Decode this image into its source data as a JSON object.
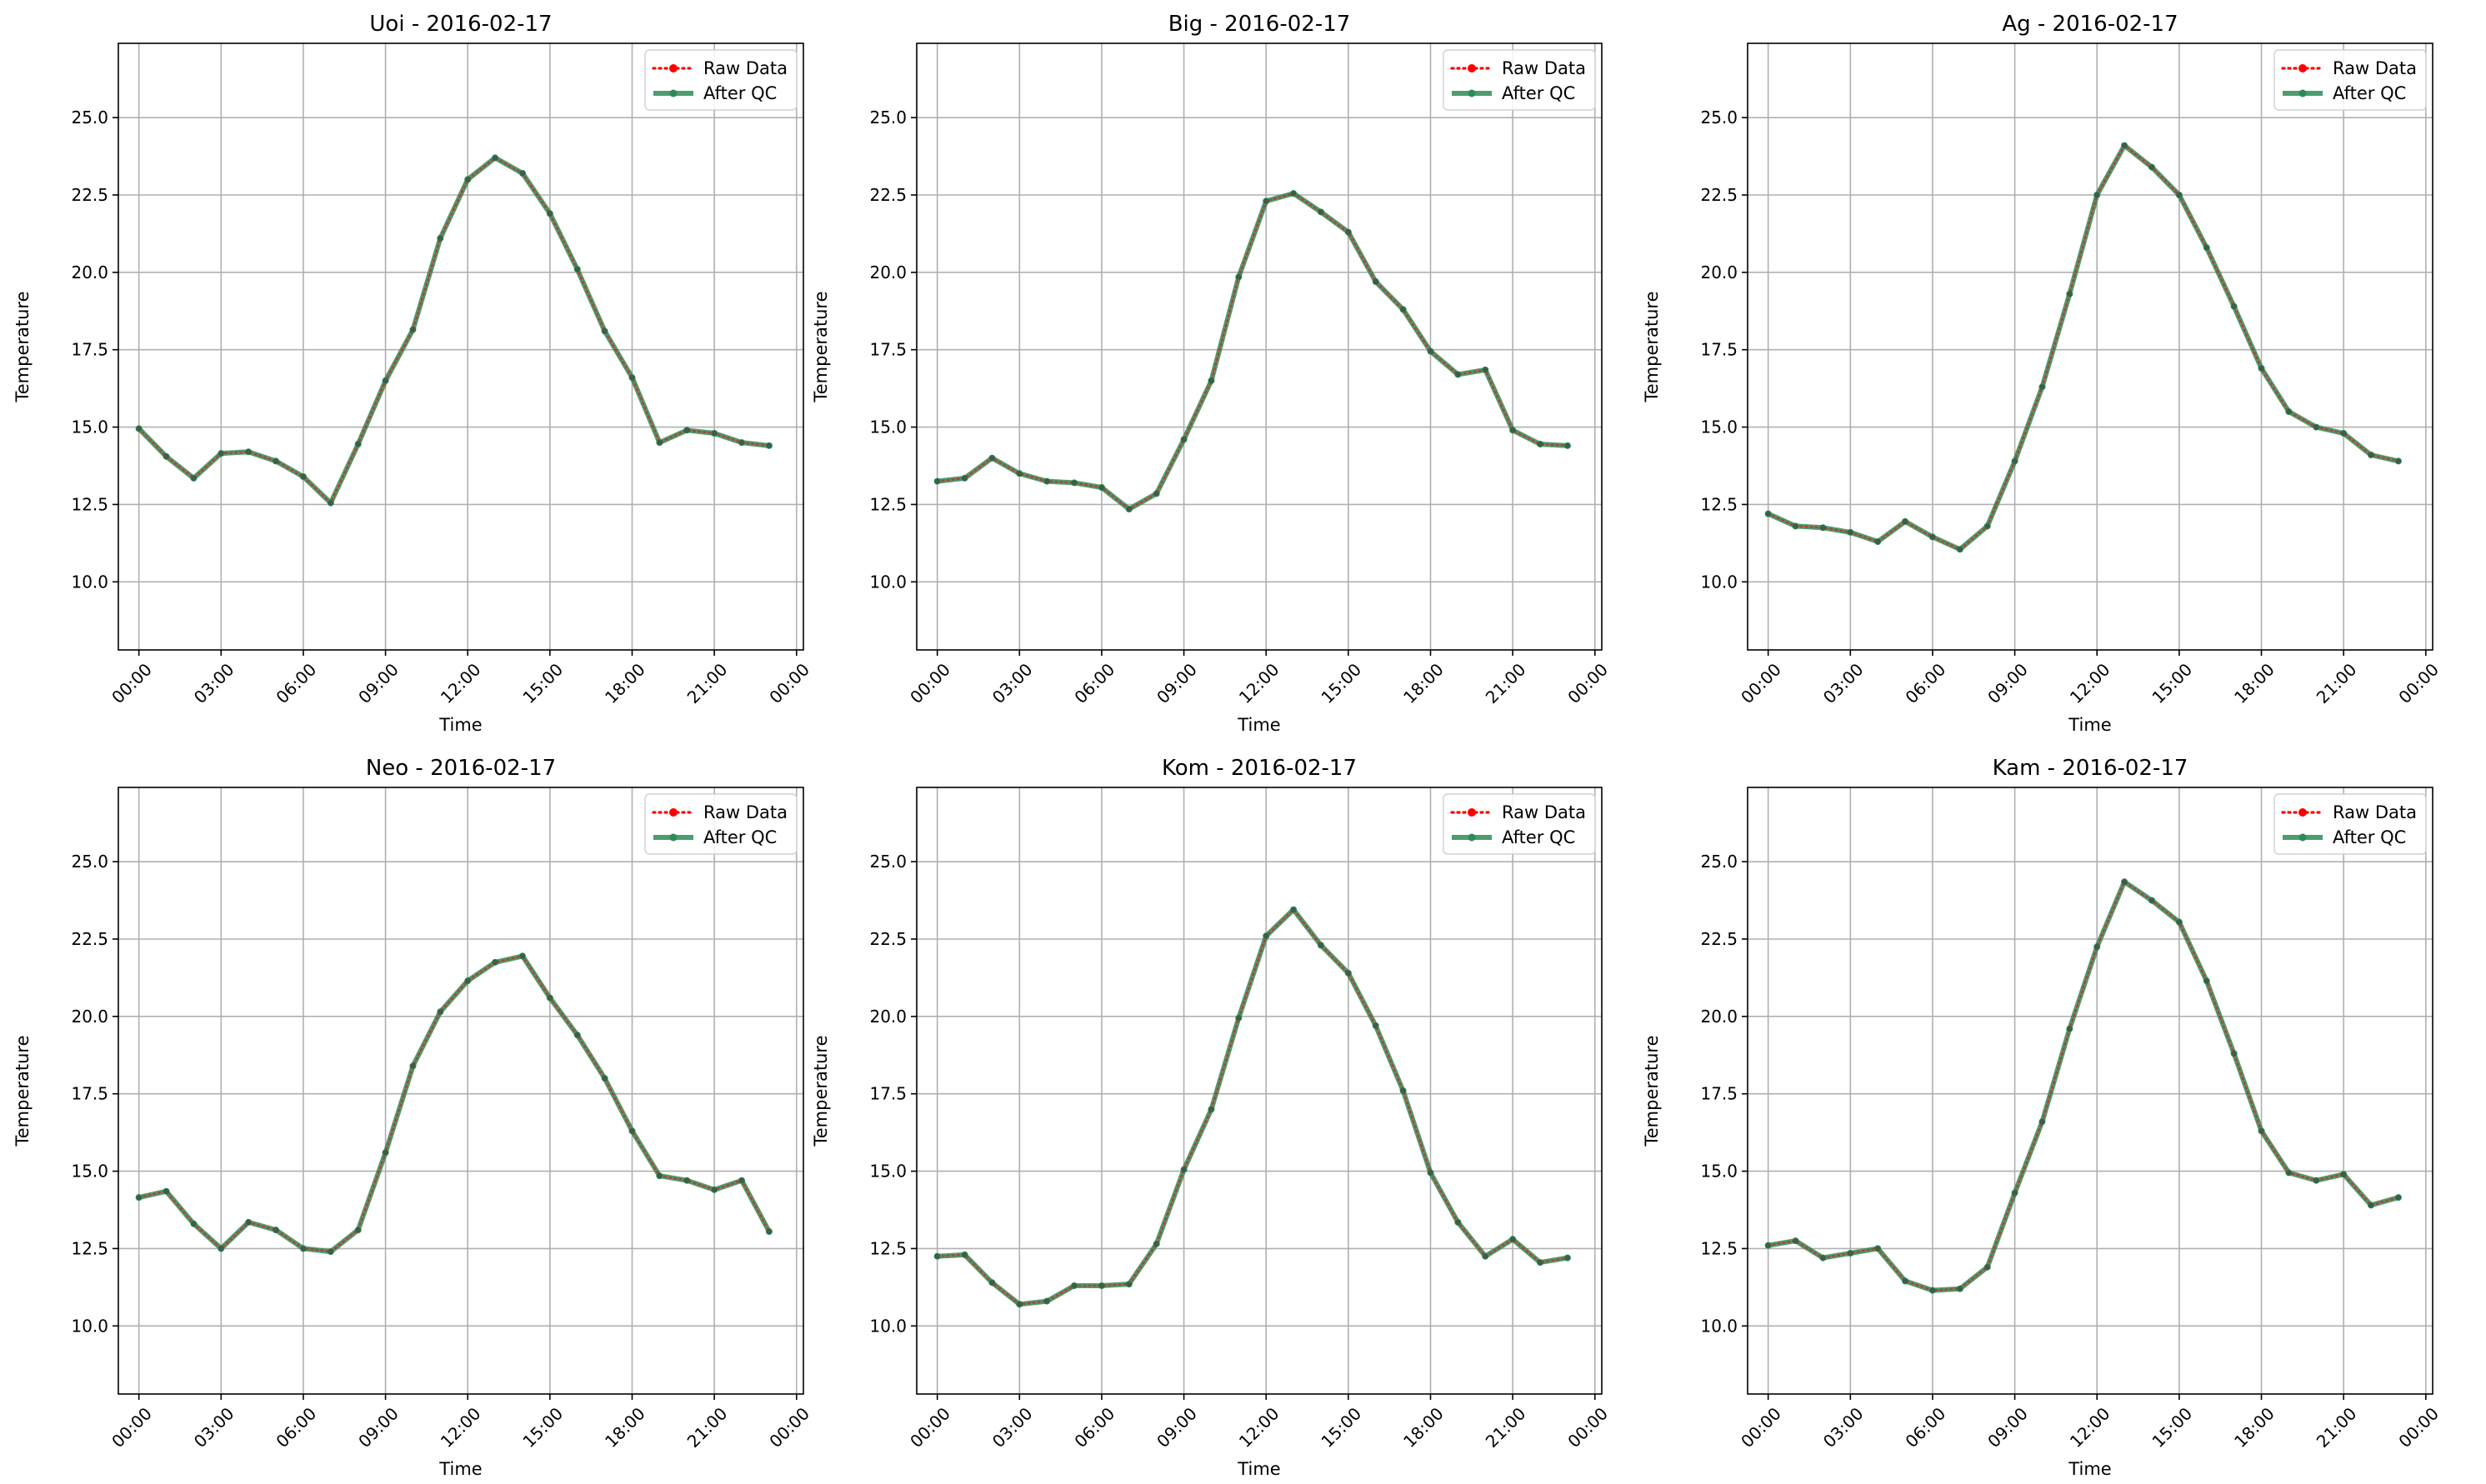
{
  "chart_data": [
    {
      "type": "line",
      "title": "Uoi - 2016-02-17",
      "xlabel": "Time",
      "ylabel": "Temperature",
      "x": [
        "00:00",
        "01:00",
        "02:00",
        "03:00",
        "04:00",
        "05:00",
        "06:00",
        "07:00",
        "08:00",
        "09:00",
        "10:00",
        "11:00",
        "12:00",
        "13:00",
        "14:00",
        "15:00",
        "16:00",
        "17:00",
        "18:00",
        "19:00",
        "20:00",
        "21:00",
        "22:00",
        "23:00"
      ],
      "xticks": [
        "00:00",
        "03:00",
        "06:00",
        "09:00",
        "12:00",
        "15:00",
        "18:00",
        "21:00",
        "00:00"
      ],
      "xlim": [
        "-0:45",
        "24:15"
      ],
      "ylim": [
        7.8,
        27.4
      ],
      "yticks": [
        "10.0",
        "12.5",
        "15.0",
        "17.5",
        "20.0",
        "22.5",
        "25.0"
      ],
      "grid": true,
      "legend": "top-right",
      "series": [
        {
          "name": "Raw Data",
          "color": "#ff0000",
          "style": "dotted",
          "values": [
            14.95,
            14.05,
            13.35,
            14.15,
            14.2,
            13.9,
            13.4,
            12.55,
            14.45,
            16.5,
            18.15,
            21.1,
            23.0,
            23.7,
            23.2,
            21.9,
            20.1,
            18.1,
            16.6,
            14.5,
            14.9,
            14.8,
            14.5,
            14.4
          ]
        },
        {
          "name": "After QC",
          "color": "#2e8b57",
          "style": "solid",
          "values": [
            14.95,
            14.05,
            13.35,
            14.15,
            14.2,
            13.9,
            13.4,
            12.55,
            14.45,
            16.5,
            18.15,
            21.1,
            23.0,
            23.7,
            23.2,
            21.9,
            20.1,
            18.1,
            16.6,
            14.5,
            14.9,
            14.8,
            14.5,
            14.4
          ]
        }
      ]
    },
    {
      "type": "line",
      "title": "Big - 2016-02-17",
      "xlabel": "Time",
      "ylabel": "Temperature",
      "x": [
        "00:00",
        "01:00",
        "02:00",
        "03:00",
        "04:00",
        "05:00",
        "06:00",
        "07:00",
        "08:00",
        "09:00",
        "10:00",
        "11:00",
        "12:00",
        "13:00",
        "14:00",
        "15:00",
        "16:00",
        "17:00",
        "18:00",
        "19:00",
        "20:00",
        "21:00",
        "22:00",
        "23:00"
      ],
      "xticks": [
        "00:00",
        "03:00",
        "06:00",
        "09:00",
        "12:00",
        "15:00",
        "18:00",
        "21:00",
        "00:00"
      ],
      "xlim": [
        "-0:45",
        "24:15"
      ],
      "ylim": [
        7.8,
        27.4
      ],
      "yticks": [
        "10.0",
        "12.5",
        "15.0",
        "17.5",
        "20.0",
        "22.5",
        "25.0"
      ],
      "grid": true,
      "legend": "top-right",
      "series": [
        {
          "name": "Raw Data",
          "color": "#ff0000",
          "style": "dotted",
          "values": [
            13.25,
            13.35,
            14.0,
            13.5,
            13.25,
            13.2,
            13.05,
            12.35,
            12.85,
            14.6,
            16.5,
            19.85,
            22.3,
            22.55,
            21.95,
            21.3,
            19.7,
            18.8,
            17.45,
            16.7,
            16.85,
            14.9,
            14.45,
            14.4
          ]
        },
        {
          "name": "After QC",
          "color": "#2e8b57",
          "style": "solid",
          "values": [
            13.25,
            13.35,
            14.0,
            13.5,
            13.25,
            13.2,
            13.05,
            12.35,
            12.85,
            14.6,
            16.5,
            19.85,
            22.3,
            22.55,
            21.95,
            21.3,
            19.7,
            18.8,
            17.45,
            16.7,
            16.85,
            14.9,
            14.45,
            14.4
          ]
        }
      ]
    },
    {
      "type": "line",
      "title": "Ag - 2016-02-17",
      "xlabel": "Time",
      "ylabel": "Temperature",
      "x": [
        "00:00",
        "01:00",
        "02:00",
        "03:00",
        "04:00",
        "05:00",
        "06:00",
        "07:00",
        "08:00",
        "09:00",
        "10:00",
        "11:00",
        "12:00",
        "13:00",
        "14:00",
        "15:00",
        "16:00",
        "17:00",
        "18:00",
        "19:00",
        "20:00",
        "21:00",
        "22:00",
        "23:00"
      ],
      "xticks": [
        "00:00",
        "03:00",
        "06:00",
        "09:00",
        "12:00",
        "15:00",
        "18:00",
        "21:00",
        "00:00"
      ],
      "xlim": [
        "-0:45",
        "24:15"
      ],
      "ylim": [
        7.8,
        27.4
      ],
      "yticks": [
        "10.0",
        "12.5",
        "15.0",
        "17.5",
        "20.0",
        "22.5",
        "25.0"
      ],
      "grid": true,
      "legend": "top-right",
      "series": [
        {
          "name": "Raw Data",
          "color": "#ff0000",
          "style": "dotted",
          "values": [
            12.2,
            11.8,
            11.75,
            11.6,
            11.3,
            11.95,
            11.45,
            11.05,
            11.8,
            13.9,
            16.3,
            19.3,
            22.5,
            24.1,
            23.4,
            22.5,
            20.8,
            18.9,
            16.9,
            15.5,
            15.0,
            14.8,
            14.1,
            13.9
          ]
        },
        {
          "name": "After QC",
          "color": "#2e8b57",
          "style": "solid",
          "values": [
            12.2,
            11.8,
            11.75,
            11.6,
            11.3,
            11.95,
            11.45,
            11.05,
            11.8,
            13.9,
            16.3,
            19.3,
            22.5,
            24.1,
            23.4,
            22.5,
            20.8,
            18.9,
            16.9,
            15.5,
            15.0,
            14.8,
            14.1,
            13.9
          ]
        }
      ]
    },
    {
      "type": "line",
      "title": "Neo - 2016-02-17",
      "xlabel": "Time",
      "ylabel": "Temperature",
      "x": [
        "00:00",
        "01:00",
        "02:00",
        "03:00",
        "04:00",
        "05:00",
        "06:00",
        "07:00",
        "08:00",
        "09:00",
        "10:00",
        "11:00",
        "12:00",
        "13:00",
        "14:00",
        "15:00",
        "16:00",
        "17:00",
        "18:00",
        "19:00",
        "20:00",
        "21:00",
        "22:00",
        "23:00"
      ],
      "xticks": [
        "00:00",
        "03:00",
        "06:00",
        "09:00",
        "12:00",
        "15:00",
        "18:00",
        "21:00",
        "00:00"
      ],
      "xlim": [
        "-0:45",
        "24:15"
      ],
      "ylim": [
        7.8,
        27.4
      ],
      "yticks": [
        "10.0",
        "12.5",
        "15.0",
        "17.5",
        "20.0",
        "22.5",
        "25.0"
      ],
      "grid": true,
      "legend": "top-right",
      "series": [
        {
          "name": "Raw Data",
          "color": "#ff0000",
          "style": "dotted",
          "values": [
            14.15,
            14.35,
            13.3,
            12.5,
            13.35,
            13.1,
            12.5,
            12.4,
            13.1,
            15.6,
            18.4,
            20.15,
            21.15,
            21.75,
            21.95,
            20.6,
            19.4,
            18.0,
            16.3,
            14.85,
            14.7,
            14.4,
            14.7,
            13.05
          ]
        },
        {
          "name": "After QC",
          "color": "#2e8b57",
          "style": "solid",
          "values": [
            14.15,
            14.35,
            13.3,
            12.5,
            13.35,
            13.1,
            12.5,
            12.4,
            13.1,
            15.6,
            18.4,
            20.15,
            21.15,
            21.75,
            21.95,
            20.6,
            19.4,
            18.0,
            16.3,
            14.85,
            14.7,
            14.4,
            14.7,
            13.05
          ]
        }
      ]
    },
    {
      "type": "line",
      "title": "Kom - 2016-02-17",
      "xlabel": "Time",
      "ylabel": "Temperature",
      "x": [
        "00:00",
        "01:00",
        "02:00",
        "03:00",
        "04:00",
        "05:00",
        "06:00",
        "07:00",
        "08:00",
        "09:00",
        "10:00",
        "11:00",
        "12:00",
        "13:00",
        "14:00",
        "15:00",
        "16:00",
        "17:00",
        "18:00",
        "19:00",
        "20:00",
        "21:00",
        "22:00",
        "23:00"
      ],
      "xticks": [
        "00:00",
        "03:00",
        "06:00",
        "09:00",
        "12:00",
        "15:00",
        "18:00",
        "21:00",
        "00:00"
      ],
      "xlim": [
        "-0:45",
        "24:15"
      ],
      "ylim": [
        7.8,
        27.4
      ],
      "yticks": [
        "10.0",
        "12.5",
        "15.0",
        "17.5",
        "20.0",
        "22.5",
        "25.0"
      ],
      "grid": true,
      "legend": "top-right",
      "series": [
        {
          "name": "Raw Data",
          "color": "#ff0000",
          "style": "dotted",
          "values": [
            12.25,
            12.3,
            11.4,
            10.7,
            10.8,
            11.3,
            11.3,
            11.35,
            12.65,
            15.05,
            17.0,
            19.95,
            22.6,
            23.45,
            22.3,
            21.4,
            19.7,
            17.6,
            14.95,
            13.35,
            12.25,
            12.8,
            12.05,
            12.2
          ]
        },
        {
          "name": "After QC",
          "color": "#2e8b57",
          "style": "solid",
          "values": [
            12.25,
            12.3,
            11.4,
            10.7,
            10.8,
            11.3,
            11.3,
            11.35,
            12.65,
            15.05,
            17.0,
            19.95,
            22.6,
            23.45,
            22.3,
            21.4,
            19.7,
            17.6,
            14.95,
            13.35,
            12.25,
            12.8,
            12.05,
            12.2
          ]
        }
      ]
    },
    {
      "type": "line",
      "title": "Kam - 2016-02-17",
      "xlabel": "Time",
      "ylabel": "Temperature",
      "x": [
        "00:00",
        "01:00",
        "02:00",
        "03:00",
        "04:00",
        "05:00",
        "06:00",
        "07:00",
        "08:00",
        "09:00",
        "10:00",
        "11:00",
        "12:00",
        "13:00",
        "14:00",
        "15:00",
        "16:00",
        "17:00",
        "18:00",
        "19:00",
        "20:00",
        "21:00",
        "22:00",
        "23:00"
      ],
      "xticks": [
        "00:00",
        "03:00",
        "06:00",
        "09:00",
        "12:00",
        "15:00",
        "18:00",
        "21:00",
        "00:00"
      ],
      "xlim": [
        "-0:45",
        "24:15"
      ],
      "ylim": [
        7.8,
        27.4
      ],
      "yticks": [
        "10.0",
        "12.5",
        "15.0",
        "17.5",
        "20.0",
        "22.5",
        "25.0"
      ],
      "grid": true,
      "legend": "top-right",
      "series": [
        {
          "name": "Raw Data",
          "color": "#ff0000",
          "style": "dotted",
          "values": [
            12.6,
            12.75,
            12.2,
            12.35,
            12.5,
            11.45,
            11.15,
            11.2,
            11.9,
            14.3,
            16.6,
            19.6,
            22.25,
            24.35,
            23.75,
            23.05,
            21.15,
            18.8,
            16.3,
            14.95,
            14.7,
            14.9,
            13.9,
            14.15
          ]
        },
        {
          "name": "After QC",
          "color": "#2e8b57",
          "style": "solid",
          "values": [
            12.6,
            12.75,
            12.2,
            12.35,
            12.5,
            11.45,
            11.15,
            11.2,
            11.9,
            14.3,
            16.6,
            19.6,
            22.25,
            24.35,
            23.75,
            23.05,
            21.15,
            18.8,
            16.3,
            14.95,
            14.7,
            14.9,
            13.9,
            14.15
          ]
        }
      ]
    }
  ]
}
